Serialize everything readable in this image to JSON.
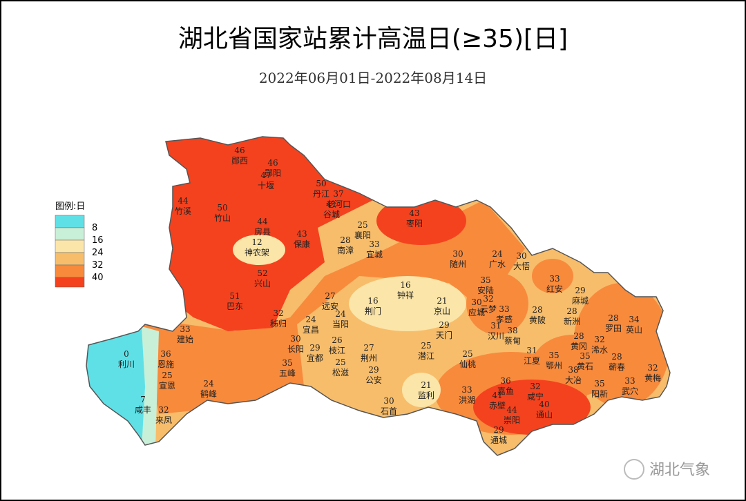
{
  "header": {
    "title": "湖北省国家站累计高温日(≥35)[日]",
    "subtitle": "2022年06月01日-2022年08月14日"
  },
  "legend": {
    "title": "图例:日",
    "items": [
      8,
      16,
      24,
      32,
      40
    ]
  },
  "stations": [
    {
      "name": "郧西",
      "value": 46
    },
    {
      "name": "郧阳",
      "value": 46
    },
    {
      "name": "十堰",
      "value": 47
    },
    {
      "name": "丹江",
      "value": 50
    },
    {
      "name": "老河口",
      "value": 37
    },
    {
      "name": "谷城",
      "value": 41
    },
    {
      "name": "竹溪",
      "value": 44
    },
    {
      "name": "竹山",
      "value": 50
    },
    {
      "name": "房县",
      "value": 44
    },
    {
      "name": "神农架",
      "value": 12
    },
    {
      "name": "保康",
      "value": 43
    },
    {
      "name": "枣阳",
      "value": 43
    },
    {
      "name": "襄阳",
      "value": 25
    },
    {
      "name": "南漳",
      "value": 28
    },
    {
      "name": "宜城",
      "value": 33
    },
    {
      "name": "随州",
      "value": 30
    },
    {
      "name": "广水",
      "value": 24
    },
    {
      "name": "大悟",
      "value": 30
    },
    {
      "name": "兴山",
      "value": 52
    },
    {
      "name": "巴东",
      "value": 51
    },
    {
      "name": "远安",
      "value": 27
    },
    {
      "name": "钟祥",
      "value": 16
    },
    {
      "name": "荆门",
      "value": 16
    },
    {
      "name": "京山",
      "value": 21
    },
    {
      "name": "安陆",
      "value": 35
    },
    {
      "name": "红安",
      "value": 33
    },
    {
      "name": "麻城",
      "value": 29
    },
    {
      "name": "云梦",
      "value": 32
    },
    {
      "name": "应城",
      "value": 30
    },
    {
      "name": "孝感",
      "value": 33
    },
    {
      "name": "黄陂",
      "value": 28
    },
    {
      "name": "新洲",
      "value": 28
    },
    {
      "name": "罗田",
      "value": 28
    },
    {
      "name": "英山",
      "value": 34
    },
    {
      "name": "秭归",
      "value": 32
    },
    {
      "name": "宜昌",
      "value": 24
    },
    {
      "name": "当阳",
      "value": 24
    },
    {
      "name": "天门",
      "value": 29
    },
    {
      "name": "汉川",
      "value": 31
    },
    {
      "name": "蔡甸",
      "value": 38
    },
    {
      "name": "建始",
      "value": 33
    },
    {
      "name": "长阳",
      "value": 30
    },
    {
      "name": "宜都",
      "value": 29
    },
    {
      "name": "枝江",
      "value": 26
    },
    {
      "name": "荆州",
      "value": 27
    },
    {
      "name": "潜江",
      "value": 25
    },
    {
      "name": "仙桃",
      "value": 25
    },
    {
      "name": "黄冈",
      "value": 28
    },
    {
      "name": "浠水",
      "value": 32
    },
    {
      "name": "江夏",
      "value": 31
    },
    {
      "name": "鄂州",
      "value": 35
    },
    {
      "name": "黄石",
      "value": 35
    },
    {
      "name": "蕲春",
      "value": 28
    },
    {
      "name": "恩施",
      "value": 36
    },
    {
      "name": "利川",
      "value": 0
    },
    {
      "name": "宣恩",
      "value": 25
    },
    {
      "name": "五峰",
      "value": 35
    },
    {
      "name": "松滋",
      "value": 25
    },
    {
      "name": "公安",
      "value": 29
    },
    {
      "name": "大冶",
      "value": 38
    },
    {
      "name": "阳新",
      "value": 35
    },
    {
      "name": "黄梅",
      "value": 32
    },
    {
      "name": "武穴",
      "value": 33
    },
    {
      "name": "鹤峰",
      "value": 24
    },
    {
      "name": "监利",
      "value": 21
    },
    {
      "name": "洪湖",
      "value": 33
    },
    {
      "name": "嘉鱼",
      "value": 36
    },
    {
      "name": "咸宁",
      "value": 32
    },
    {
      "name": "赤壁",
      "value": 41
    },
    {
      "name": "通山",
      "value": 40
    },
    {
      "name": "崇阳",
      "value": 44
    },
    {
      "name": "石首",
      "value": 30
    },
    {
      "name": "咸丰",
      "value": 7
    },
    {
      "name": "来凤",
      "value": 32
    },
    {
      "name": "通城",
      "value": 29
    }
  ],
  "watermark": "湖北气象"
}
